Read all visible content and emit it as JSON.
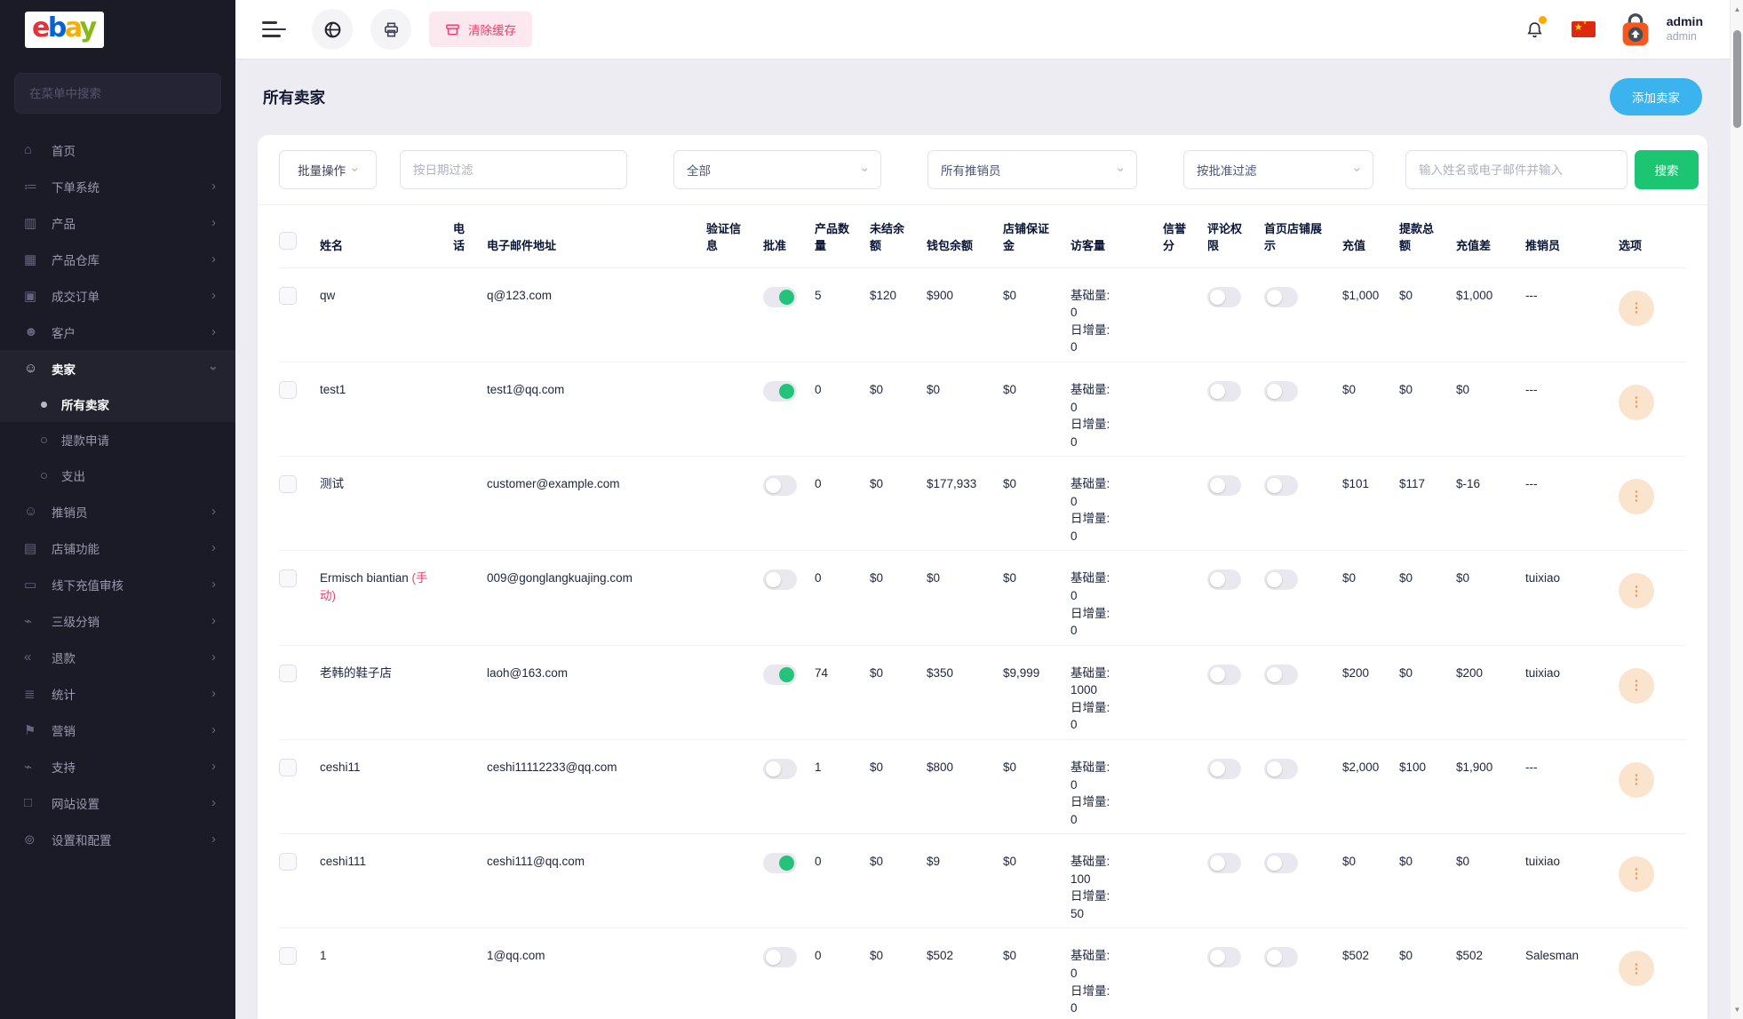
{
  "brand": {
    "letters": [
      {
        "char": "e",
        "color": "#e53238"
      },
      {
        "char": "b",
        "color": "#0064d2"
      },
      {
        "char": "a",
        "color": "#f5af02"
      },
      {
        "char": "y",
        "color": "#86b817"
      }
    ]
  },
  "sidebar": {
    "search_placeholder": "在菜单中搜索",
    "items": [
      {
        "label": "首页",
        "icon": "home-icon",
        "chevron": false
      },
      {
        "label": "下单系统",
        "icon": "order-system-icon",
        "chevron": true
      },
      {
        "label": "产品",
        "icon": "products-icon",
        "chevron": true
      },
      {
        "label": "产品仓库",
        "icon": "warehouse-icon",
        "chevron": true
      },
      {
        "label": "成交订单",
        "icon": "orders-icon",
        "chevron": true
      },
      {
        "label": "客户",
        "icon": "customers-icon",
        "chevron": true
      },
      {
        "label": "卖家",
        "icon": "sellers-icon",
        "chevron": true,
        "expanded": true,
        "active": true,
        "children": [
          {
            "label": "所有卖家",
            "active": true
          },
          {
            "label": "提款申请",
            "active": false
          },
          {
            "label": "支出",
            "active": false
          }
        ]
      },
      {
        "label": "推销员",
        "icon": "salesman-icon",
        "chevron": true
      },
      {
        "label": "店铺功能",
        "icon": "store-icon",
        "chevron": true
      },
      {
        "label": "线下充值审核",
        "icon": "offline-recharge-icon",
        "chevron": true
      },
      {
        "label": "三级分销",
        "icon": "distribution-icon",
        "chevron": true
      },
      {
        "label": "退款",
        "icon": "refund-icon",
        "chevron": true
      },
      {
        "label": "统计",
        "icon": "stats-icon",
        "chevron": true
      },
      {
        "label": "营销",
        "icon": "marketing-icon",
        "chevron": true
      },
      {
        "label": "支持",
        "icon": "support-icon",
        "chevron": true
      },
      {
        "label": "网站设置",
        "icon": "website-settings-icon",
        "chevron": true
      },
      {
        "label": "设置和配置",
        "icon": "settings-icon",
        "chevron": true
      }
    ]
  },
  "topbar": {
    "clear_cache_label": "清除缓存",
    "user": {
      "name": "admin",
      "role": "admin"
    }
  },
  "page": {
    "title": "所有卖家",
    "add_seller_label": "添加卖家"
  },
  "filters": {
    "bulk_action": "批量操作",
    "date_placeholder": "按日期过滤",
    "all_option": "全部",
    "all_salesmen": "所有推销员",
    "approval_filter": "按批准过滤",
    "search_placeholder": "输入姓名或电子邮件并输入",
    "search_label": "搜索"
  },
  "table": {
    "headers": [
      "姓名",
      "电\n话",
      "电子邮件地址",
      "验证信\n息",
      "批准",
      "产品数\n量",
      "未结余\n额",
      "钱包余额",
      "店铺保证\n金",
      "访客量",
      "信誉\n分",
      "评论权\n限",
      "首页店铺展\n示",
      "充值",
      "提款总\n额",
      "充值差",
      "推销员",
      "选项"
    ],
    "visitor_labels": {
      "base": "基础量:",
      "daily": "日增量:"
    },
    "rows": [
      {
        "name": "qw",
        "name_red": "",
        "email": "q@123.com",
        "approved": true,
        "products": "5",
        "outstanding": "$120",
        "wallet": "$900",
        "deposit": "$0",
        "visitor_base": "0",
        "visitor_daily": "0",
        "recharge": "$1,000",
        "withdraw_total": "$0",
        "recharge_diff": "$1,000",
        "salesman": "---"
      },
      {
        "name": "test1",
        "name_red": "",
        "email": "test1@qq.com",
        "approved": true,
        "products": "0",
        "outstanding": "$0",
        "wallet": "$0",
        "deposit": "$0",
        "visitor_base": "0",
        "visitor_daily": "0",
        "recharge": "$0",
        "withdraw_total": "$0",
        "recharge_diff": "$0",
        "salesman": "---"
      },
      {
        "name": "测试",
        "name_red": "",
        "email": "customer@example.com",
        "approved": false,
        "products": "0",
        "outstanding": "$0",
        "wallet": "$177,933",
        "deposit": "$0",
        "visitor_base": "0",
        "visitor_daily": "0",
        "recharge": "$101",
        "withdraw_total": "$117",
        "recharge_diff": "$-16",
        "salesman": "---"
      },
      {
        "name": "Ermisch biantian ",
        "name_red": "(手动)",
        "email": "009@gonglangkuajing.com",
        "approved": false,
        "products": "0",
        "outstanding": "$0",
        "wallet": "$0",
        "deposit": "$0",
        "visitor_base": "0",
        "visitor_daily": "0",
        "recharge": "$0",
        "withdraw_total": "$0",
        "recharge_diff": "$0",
        "salesman": "tuixiao"
      },
      {
        "name": "老韩的鞋子店",
        "name_red": "",
        "email": "laoh@163.com",
        "approved": true,
        "products": "74",
        "outstanding": "$0",
        "wallet": "$350",
        "deposit": "$9,999",
        "visitor_base": "1000",
        "visitor_daily": "0",
        "recharge": "$200",
        "withdraw_total": "$0",
        "recharge_diff": "$200",
        "salesman": "tuixiao"
      },
      {
        "name": "ceshi11",
        "name_red": "",
        "email": "ceshi11112233@qq.com",
        "approved": false,
        "products": "1",
        "outstanding": "$0",
        "wallet": "$800",
        "deposit": "$0",
        "visitor_base": "0",
        "visitor_daily": "0",
        "recharge": "$2,000",
        "withdraw_total": "$100",
        "recharge_diff": "$1,900",
        "salesman": "---"
      },
      {
        "name": "ceshi111",
        "name_red": "",
        "email": "ceshi111@qq.com",
        "approved": true,
        "products": "0",
        "outstanding": "$0",
        "wallet": "$9",
        "deposit": "$0",
        "visitor_base": "100",
        "visitor_daily": "50",
        "recharge": "$0",
        "withdraw_total": "$0",
        "recharge_diff": "$0",
        "salesman": "tuixiao"
      },
      {
        "name": "1",
        "name_red": "",
        "email": "1@qq.com",
        "approved": false,
        "products": "0",
        "outstanding": "$0",
        "wallet": "$502",
        "deposit": "$0",
        "visitor_base": "0",
        "visitor_daily": "0",
        "recharge": "$502",
        "withdraw_total": "$0",
        "recharge_diff": "$502",
        "salesman": "Salesman"
      }
    ]
  },
  "colors": {
    "sidebar_bg": "#1b1b28",
    "page_bg": "#ececf2",
    "accent_blue": "#3ab3ef",
    "accent_green": "#1bc572",
    "toggle_on_green": "#23c37c",
    "danger_pink": "#f1416c",
    "notify_orange": "#ffa800",
    "option_btn_bg": "#fbe4cd"
  }
}
